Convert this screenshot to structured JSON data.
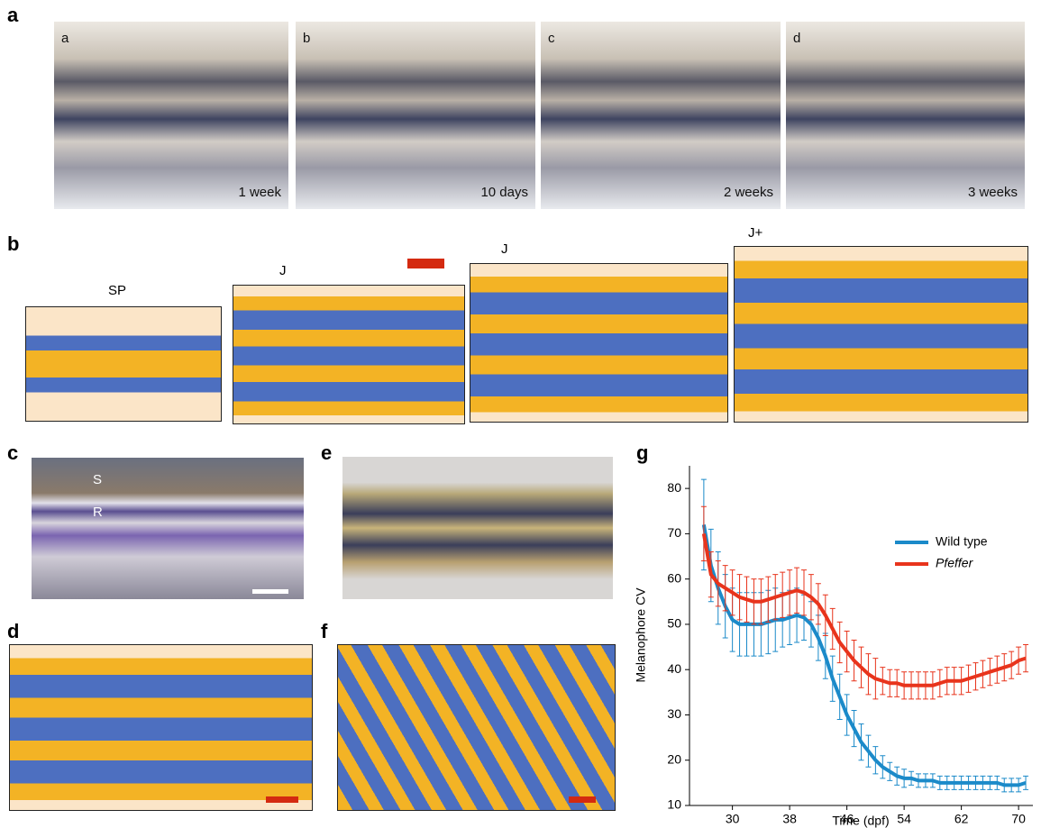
{
  "panel_labels": [
    "a",
    "b",
    "c",
    "d",
    "e",
    "f",
    "g"
  ],
  "panel_a": {
    "images": [
      {
        "letter": "a",
        "caption": "1 week"
      },
      {
        "letter": "b",
        "caption": "10 days"
      },
      {
        "letter": "c",
        "caption": "2 weeks"
      },
      {
        "letter": "d",
        "caption": "3 weeks"
      }
    ]
  },
  "panel_b": {
    "labels": [
      "SP",
      "J",
      "J",
      "J+"
    ]
  },
  "panel_c": {
    "labels": [
      "S",
      "R"
    ]
  },
  "chart_data": {
    "type": "line",
    "xlabel": "Time (dpf)",
    "ylabel": "Melanophore CV",
    "xlim": [
      24,
      72
    ],
    "ylim": [
      10,
      85
    ],
    "xticks": [
      30,
      38,
      46,
      54,
      62,
      70
    ],
    "yticks": [
      10,
      20,
      30,
      40,
      50,
      60,
      70,
      80
    ],
    "x": [
      26,
      27,
      28,
      29,
      30,
      31,
      32,
      33,
      34,
      35,
      36,
      37,
      38,
      39,
      40,
      41,
      42,
      43,
      44,
      45,
      46,
      47,
      48,
      49,
      50,
      51,
      52,
      53,
      54,
      55,
      56,
      57,
      58,
      59,
      60,
      61,
      62,
      63,
      64,
      65,
      66,
      67,
      68,
      69,
      70,
      71
    ],
    "series": [
      {
        "name": "Wild type",
        "color": "#1b8ac9",
        "values": [
          72,
          63,
          58,
          54,
          51,
          50,
          50,
          50,
          50,
          50.5,
          51,
          51,
          51.5,
          52,
          51.5,
          50,
          47,
          43,
          38,
          34,
          30,
          27,
          24,
          22,
          20,
          18.5,
          17.5,
          16.5,
          16,
          16,
          15.5,
          15.5,
          15.5,
          15,
          15,
          15,
          15,
          15,
          15,
          15,
          15,
          15,
          14.5,
          14.5,
          14.5,
          15
        ],
        "errors": [
          10,
          8,
          8,
          7,
          7,
          7,
          7,
          7,
          7,
          7,
          7,
          6,
          6,
          6,
          5,
          5,
          5,
          5,
          5,
          5,
          4.5,
          4,
          4,
          3.5,
          3,
          2.5,
          2,
          2,
          2,
          1.5,
          1.5,
          1.5,
          1.5,
          1.5,
          1.5,
          1.5,
          1.5,
          1.5,
          1.5,
          1.5,
          1.5,
          1.5,
          1.5,
          1.5,
          1.5,
          1.5
        ]
      },
      {
        "name": "Pfeffer",
        "color": "#e8341c",
        "values": [
          70,
          61,
          59,
          58,
          57,
          56,
          55.5,
          55,
          55,
          55.5,
          56,
          56.5,
          57,
          57.5,
          57,
          56,
          54.5,
          52,
          49,
          46,
          44,
          42,
          40.5,
          39,
          38,
          37.5,
          37,
          37,
          36.5,
          36.5,
          36.5,
          36.5,
          36.5,
          37,
          37.5,
          37.5,
          37.5,
          38,
          38.5,
          39,
          39.5,
          40,
          40.5,
          41,
          42,
          42.5
        ],
        "errors": [
          6,
          5,
          5,
          5,
          5,
          5,
          5,
          5,
          5,
          5,
          5,
          5,
          5,
          5,
          5,
          5,
          4.5,
          4.5,
          4.5,
          4.5,
          4.5,
          4.5,
          4.5,
          4.5,
          4.5,
          3,
          3,
          3,
          3,
          3,
          3,
          3,
          3,
          3,
          3,
          3,
          3,
          3,
          3,
          3,
          3,
          3,
          3,
          3,
          3,
          3
        ]
      }
    ]
  }
}
